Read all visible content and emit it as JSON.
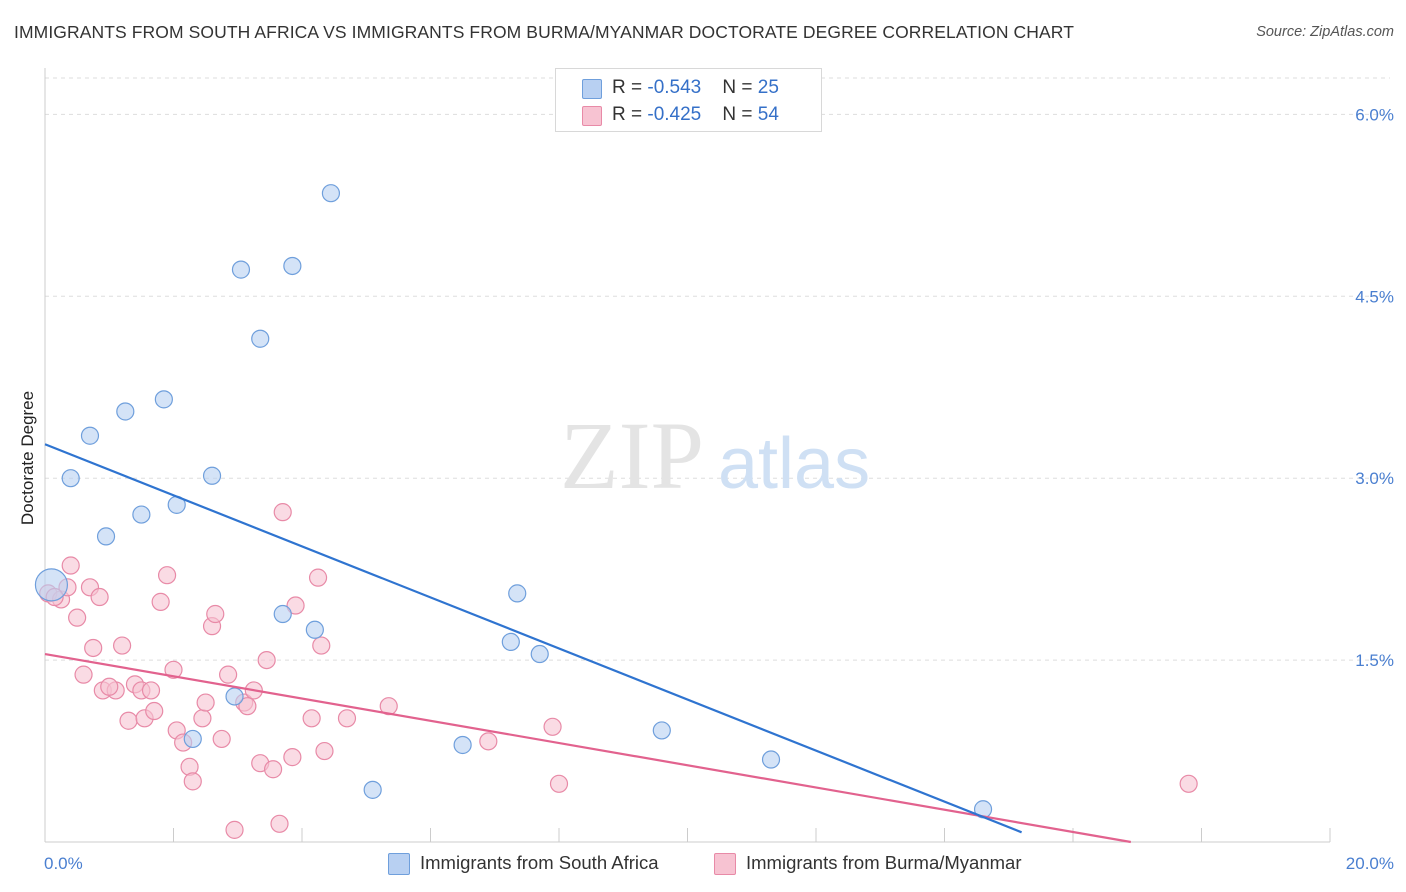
{
  "title": "IMMIGRANTS FROM SOUTH AFRICA VS IMMIGRANTS FROM BURMA/MYANMAR DOCTORATE DEGREE CORRELATION CHART",
  "source": "Source: ZipAtlas.com",
  "watermark": {
    "zip": "ZIP",
    "atlas": "atlas"
  },
  "legend": {
    "rows": [
      {
        "r_label": "R = ",
        "r_value": "-0.543",
        "n_label": "N = ",
        "n_value": "25"
      },
      {
        "r_label": "R = ",
        "r_value": "-0.425",
        "n_label": "N = ",
        "n_value": "54"
      }
    ]
  },
  "colors": {
    "south_africa_fill": "#b8d0f2",
    "south_africa_stroke": "#6f9fdc",
    "south_africa_line": "#2f74d0",
    "burma_fill": "#f7c3d2",
    "burma_stroke": "#e88aa7",
    "burma_line": "#e2628e",
    "grid": "#dddddd",
    "axis_text": "#4a7fd0"
  },
  "chart_data": {
    "type": "scatter",
    "ylabel": "Doctorate Degree",
    "xlabel": "",
    "xlim": [
      0,
      20
    ],
    "ylim": [
      0,
      6.3
    ],
    "x_tick_labels": [
      "0.0%",
      "20.0%"
    ],
    "y_ticks": [
      1.5,
      3.0,
      4.5,
      6.0
    ],
    "y_tick_labels": [
      "1.5%",
      "3.0%",
      "4.5%",
      "6.0%"
    ],
    "grid": "horizontal dashed",
    "series": [
      {
        "name": "Immigrants from South Africa",
        "color": "#b8d0f2",
        "trend": {
          "x": [
            0.0,
            15.2
          ],
          "y": [
            3.28,
            0.08
          ]
        },
        "points": [
          [
            0.1,
            2.12
          ],
          [
            0.4,
            3.0
          ],
          [
            0.7,
            3.35
          ],
          [
            0.95,
            2.52
          ],
          [
            1.25,
            3.55
          ],
          [
            1.5,
            2.7
          ],
          [
            1.85,
            3.65
          ],
          [
            2.05,
            2.78
          ],
          [
            2.3,
            0.85
          ],
          [
            2.6,
            3.02
          ],
          [
            2.95,
            1.2
          ],
          [
            3.05,
            4.72
          ],
          [
            3.35,
            4.15
          ],
          [
            3.7,
            1.88
          ],
          [
            3.85,
            4.75
          ],
          [
            4.2,
            1.75
          ],
          [
            4.45,
            5.35
          ],
          [
            5.1,
            0.43
          ],
          [
            6.5,
            0.8
          ],
          [
            7.25,
            1.65
          ],
          [
            7.35,
            2.05
          ],
          [
            7.7,
            1.55
          ],
          [
            9.6,
            0.92
          ],
          [
            11.3,
            0.68
          ],
          [
            14.6,
            0.27
          ]
        ]
      },
      {
        "name": "Immigrants from Burma/Myanmar",
        "color": "#f7c3d2",
        "trend": {
          "x": [
            0.0,
            16.9
          ],
          "y": [
            1.55,
            0.0
          ]
        },
        "points": [
          [
            0.05,
            2.05
          ],
          [
            0.25,
            2.0
          ],
          [
            0.35,
            2.1
          ],
          [
            0.4,
            2.28
          ],
          [
            0.5,
            1.85
          ],
          [
            0.6,
            1.38
          ],
          [
            0.7,
            2.1
          ],
          [
            0.75,
            1.6
          ],
          [
            0.85,
            2.02
          ],
          [
            0.9,
            1.25
          ],
          [
            1.1,
            1.25
          ],
          [
            1.2,
            1.62
          ],
          [
            1.3,
            1.0
          ],
          [
            1.4,
            1.3
          ],
          [
            1.5,
            1.25
          ],
          [
            1.55,
            1.02
          ],
          [
            1.65,
            1.25
          ],
          [
            1.7,
            1.08
          ],
          [
            1.8,
            1.98
          ],
          [
            1.9,
            2.2
          ],
          [
            2.0,
            1.42
          ],
          [
            2.05,
            0.92
          ],
          [
            2.15,
            0.82
          ],
          [
            2.25,
            0.62
          ],
          [
            2.3,
            0.5
          ],
          [
            2.45,
            1.02
          ],
          [
            2.5,
            1.15
          ],
          [
            2.6,
            1.78
          ],
          [
            2.65,
            1.88
          ],
          [
            2.75,
            0.85
          ],
          [
            2.85,
            1.38
          ],
          [
            2.95,
            0.1
          ],
          [
            3.1,
            1.15
          ],
          [
            3.15,
            1.12
          ],
          [
            3.25,
            1.25
          ],
          [
            3.35,
            0.65
          ],
          [
            3.45,
            1.5
          ],
          [
            3.55,
            0.6
          ],
          [
            3.65,
            0.15
          ],
          [
            3.7,
            2.72
          ],
          [
            3.85,
            0.7
          ],
          [
            3.9,
            1.95
          ],
          [
            4.15,
            1.02
          ],
          [
            4.25,
            2.18
          ],
          [
            4.3,
            1.62
          ],
          [
            4.35,
            0.75
          ],
          [
            4.7,
            1.02
          ],
          [
            5.35,
            1.12
          ],
          [
            6.9,
            0.83
          ],
          [
            7.9,
            0.95
          ],
          [
            8.0,
            0.48
          ],
          [
            17.8,
            0.48
          ],
          [
            0.15,
            2.02
          ],
          [
            1.0,
            1.28
          ]
        ]
      }
    ]
  }
}
